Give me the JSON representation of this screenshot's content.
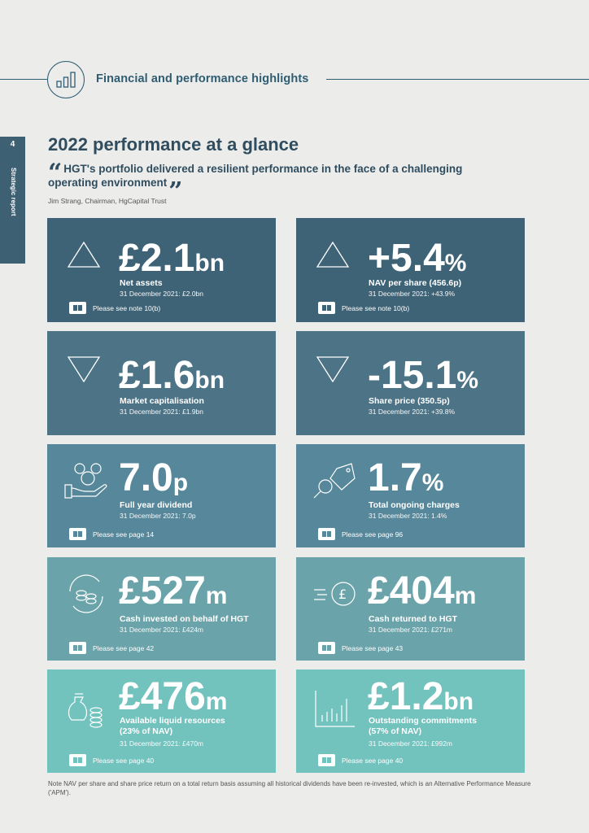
{
  "header": {
    "section_title": "Financial and performance highlights"
  },
  "sidebar": {
    "page_number": "4",
    "label": "Strategic report"
  },
  "title": "2022 performance at a glance",
  "quote": {
    "text": "HGT's portfolio delivered a resilient performance in the face of a challenging operating environment",
    "attribution": "Jim Strang, Chairman, HgCapital Trust"
  },
  "colors": {
    "row1": "#3e6376",
    "row2": "#4c7386",
    "row3": "#56879a",
    "row4": "#6aa3a9",
    "row5": "#72c2bd"
  },
  "cards": {
    "net_assets": {
      "value": "£2.1",
      "unit": "bn",
      "label": "Net assets",
      "sub": "31 December 2021: £2.0bn",
      "note": "Please see note 10(b)",
      "icon": "triangle-up-icon"
    },
    "nav": {
      "value": "+5.4",
      "unit": "%",
      "label": "NAV per share (456.6p)",
      "sub": "31 December 2021: +43.9%",
      "note": "Please see note 10(b)",
      "icon": "triangle-up-icon"
    },
    "market_cap": {
      "value": "£1.6",
      "unit": "bn",
      "label": "Market capitalisation",
      "sub": "31 December 2021: £1.9bn",
      "icon": "triangle-down-icon"
    },
    "share_price": {
      "value": "-15.1",
      "unit": "%",
      "label": "Share price (350.5p)",
      "sub": "31 December 2021: +39.8%",
      "icon": "triangle-down-icon"
    },
    "dividend": {
      "value": "7.0",
      "unit": "p",
      "label": "Full year dividend",
      "sub": "31 December 2021: 7.0p",
      "note": "Please see page 14",
      "icon": "coins-hand-icon"
    },
    "ongoing": {
      "value": "1.7",
      "unit": "%",
      "label": "Total ongoing charges",
      "sub": "31 December 2021: 1.4%",
      "note": "Please see page 96",
      "icon": "price-tag-icon"
    },
    "invested": {
      "value": "£527",
      "unit": "m",
      "label": "Cash invested on behalf of HGT",
      "sub": "31 December 2021: £424m",
      "note": "Please see page 42",
      "icon": "coin-cycle-icon"
    },
    "returned": {
      "value": "£404",
      "unit": "m",
      "label": "Cash returned to HGT",
      "sub": "31 December 2021: £271m",
      "note": "Please see page 43",
      "icon": "pound-speed-icon"
    },
    "liquid": {
      "value": "£476",
      "unit": "m",
      "label": "Available liquid resources",
      "label2": "(23% of NAV)",
      "sub": "31 December 2021: £470m",
      "note": "Please see page 40",
      "icon": "money-bag-icon"
    },
    "commitments": {
      "value": "£1.2",
      "unit": "bn",
      "label": "Outstanding commitments",
      "label2": "(57% of NAV)",
      "sub": "31 December 2021: £992m",
      "note": "Please see page 40",
      "icon": "bar-graph-icon"
    }
  },
  "footnote": "Note NAV per share and share price return on a total return basis assuming all historical dividends have been re-invested, which is an Alternative Performance Measure ('APM')."
}
